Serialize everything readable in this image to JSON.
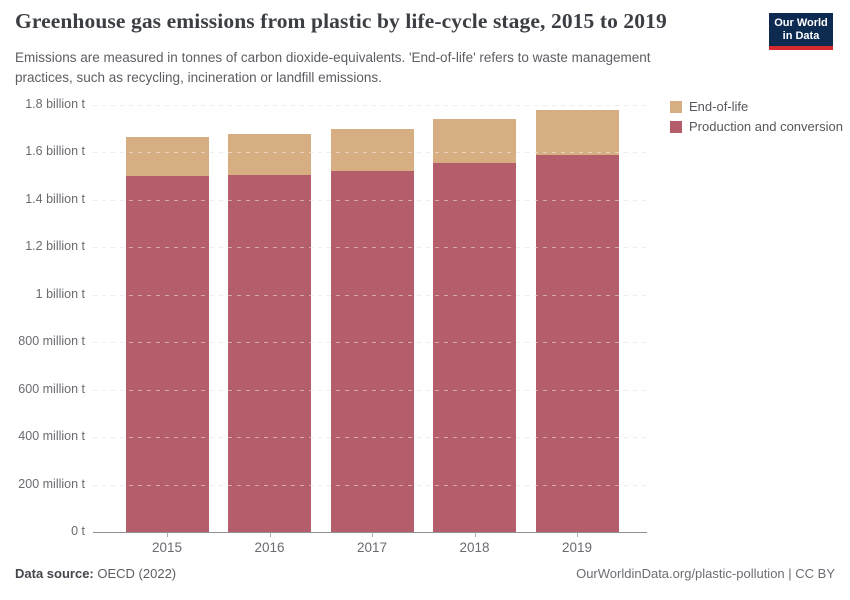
{
  "header": {
    "title": "Greenhouse gas emissions from plastic by life-cycle stage, 2015 to 2019",
    "subtitle": "Emissions are measured in tonnes of carbon dioxide-equivalents. 'End-of-life' refers to waste management practices, such as recycling, incineration or landfill emissions.",
    "logo": {
      "line1": "Our World",
      "line2": "in Data"
    }
  },
  "colors": {
    "production_and_conversion": "#b35e6a",
    "end_of_life": "#d6ae82",
    "logo_background": "#0d2b51",
    "logo_bar": "#d5292f",
    "gridline": "#dcdee3",
    "axis_line": "#8d8f94"
  },
  "chart_data": {
    "type": "bar",
    "stacked": true,
    "title": "Greenhouse gas emissions from plastic by life-cycle stage, 2015 to 2019",
    "xlabel": "",
    "ylabel": "",
    "unit": "billion tonnes of carbon dioxide-equivalents",
    "categories": [
      "2015",
      "2016",
      "2017",
      "2018",
      "2019"
    ],
    "series": [
      {
        "name": "Production and conversion",
        "color": "#b35e6a",
        "values": [
          1.5,
          1.505,
          1.52,
          1.555,
          1.59
        ]
      },
      {
        "name": "End-of-life",
        "color": "#d6ae82",
        "values": [
          0.163,
          0.172,
          0.18,
          0.186,
          0.19
        ]
      }
    ],
    "ylim": [
      0,
      1.8
    ],
    "grid": true,
    "legend_position": "top-right",
    "legend_order": [
      "End-of-life",
      "Production and conversion"
    ],
    "y_ticks": [
      {
        "value": 0.0,
        "label": "0 t"
      },
      {
        "value": 0.2,
        "label": "200 million t"
      },
      {
        "value": 0.4,
        "label": "400 million t"
      },
      {
        "value": 0.6,
        "label": "600 million t"
      },
      {
        "value": 0.8,
        "label": "800 million t"
      },
      {
        "value": 1.0,
        "label": "1 billion t"
      },
      {
        "value": 1.2,
        "label": "1.2 billion t"
      },
      {
        "value": 1.4,
        "label": "1.4 billion t"
      },
      {
        "value": 1.6,
        "label": "1.6 billion t"
      },
      {
        "value": 1.8,
        "label": "1.8 billion t"
      }
    ]
  },
  "footer": {
    "source_label": "Data source:",
    "source_value": "OECD (2022)",
    "citation": "OurWorldinData.org/plastic-pollution | CC BY"
  }
}
